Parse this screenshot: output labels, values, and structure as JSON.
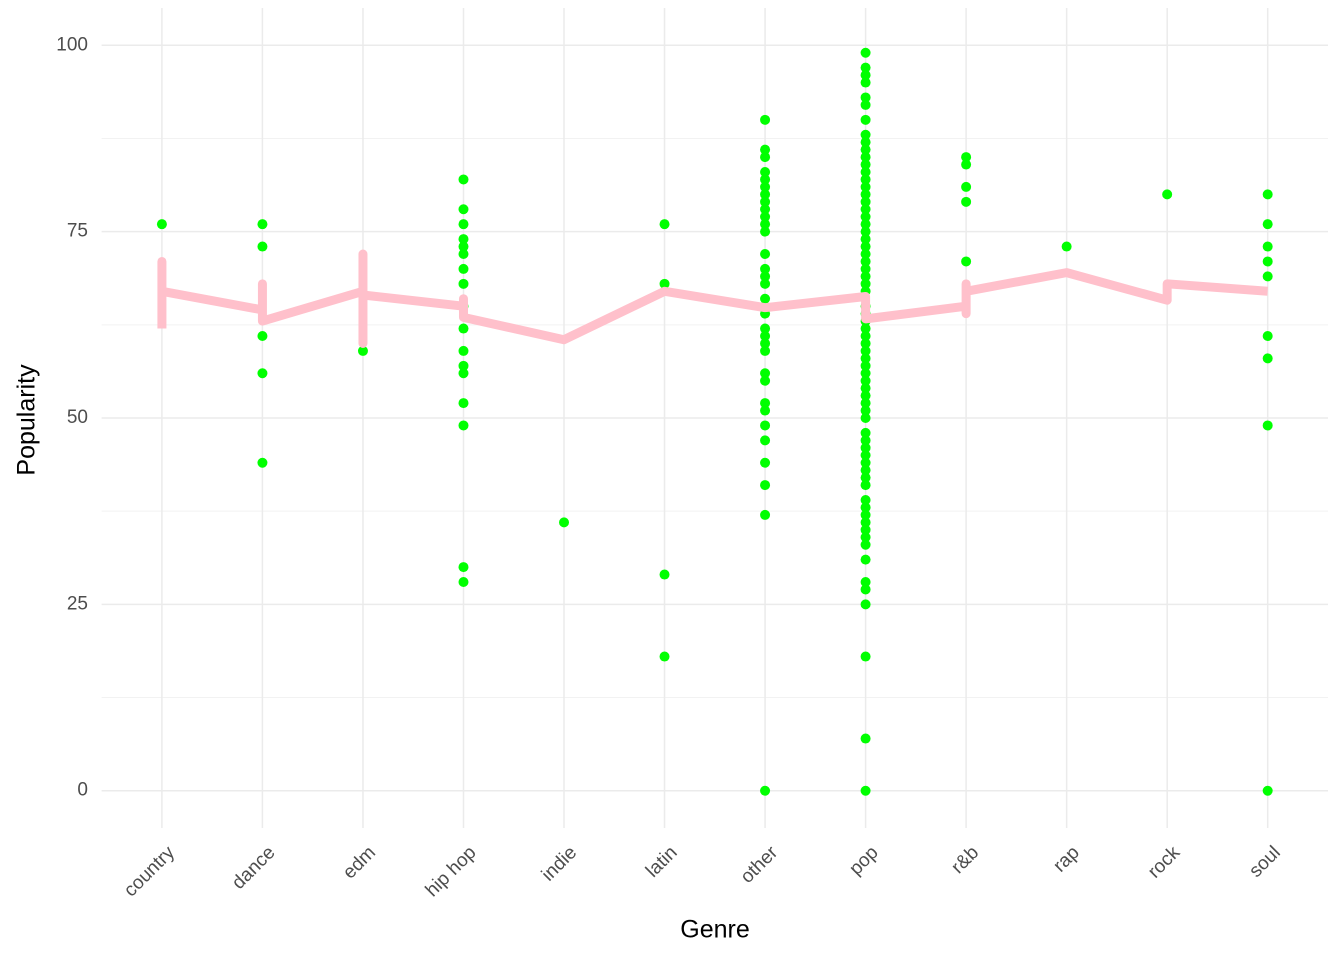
{
  "chart_data": {
    "type": "scatter",
    "x_label": "Genre",
    "y_label": "Popularity",
    "categories": [
      "country",
      "dance",
      "edm",
      "hip hop",
      "indie",
      "latin",
      "other",
      "pop",
      "r&b",
      "rap",
      "rock",
      "soul"
    ],
    "ylim": [
      -5,
      105
    ],
    "yticks": [
      0,
      25,
      50,
      75,
      100
    ],
    "y_minor_ticks": [
      12.5,
      37.5,
      62.5,
      87.5
    ],
    "grid": true,
    "points": {
      "color": "#00ff00",
      "values": [
        [
          76
        ],
        [
          76,
          73,
          61,
          56,
          44
        ],
        [
          59
        ],
        [
          82,
          78,
          76,
          74,
          73,
          72,
          70,
          68,
          65,
          62,
          59,
          57,
          56,
          52,
          49,
          30,
          28
        ],
        [
          36
        ],
        [
          76,
          68,
          29,
          18
        ],
        [
          90,
          86,
          85,
          83,
          82,
          81,
          80,
          79,
          78,
          77,
          76,
          75,
          72,
          70,
          69,
          68,
          66,
          64,
          62,
          61,
          60,
          59,
          56,
          55,
          52,
          51,
          49,
          47,
          44,
          41,
          37,
          0
        ],
        [
          99,
          97,
          96,
          95,
          93,
          92,
          90,
          88,
          87,
          86,
          85,
          84,
          83,
          82,
          81,
          80,
          79,
          78,
          77,
          76,
          75,
          74,
          73,
          72,
          71,
          70,
          69,
          68,
          67,
          65,
          64,
          63,
          62,
          61,
          60,
          59,
          58,
          57,
          56,
          55,
          54,
          53,
          52,
          51,
          50,
          48,
          47,
          46,
          45,
          44,
          43,
          42,
          41,
          39,
          38,
          37,
          36,
          35,
          34,
          33,
          31,
          28,
          27,
          25,
          18,
          7,
          0
        ],
        [
          85,
          84,
          81,
          79,
          71
        ],
        [
          73
        ],
        [
          80
        ],
        [
          80,
          76,
          73,
          71,
          69,
          61,
          58,
          49,
          0
        ]
      ]
    },
    "line": {
      "color": "#ffc0cb",
      "x": [
        "country",
        "country",
        "country",
        "dance",
        "dance",
        "dance",
        "edm",
        "edm",
        "edm",
        "edm",
        "hip hop",
        "hip hop",
        "hip hop",
        "indie",
        "latin",
        "other",
        "pop",
        "pop",
        "r&b",
        "r&b",
        "r&b",
        "r&b",
        "rap",
        "rock",
        "rock",
        "soul"
      ],
      "values": [
        62,
        71,
        67,
        64.5,
        68,
        63,
        67,
        72,
        60,
        66.5,
        65,
        66,
        63.5,
        60.5,
        67,
        64.8,
        66.3,
        63.3,
        65,
        64,
        68,
        67,
        69.5,
        65.8,
        68,
        67
      ]
    }
  }
}
